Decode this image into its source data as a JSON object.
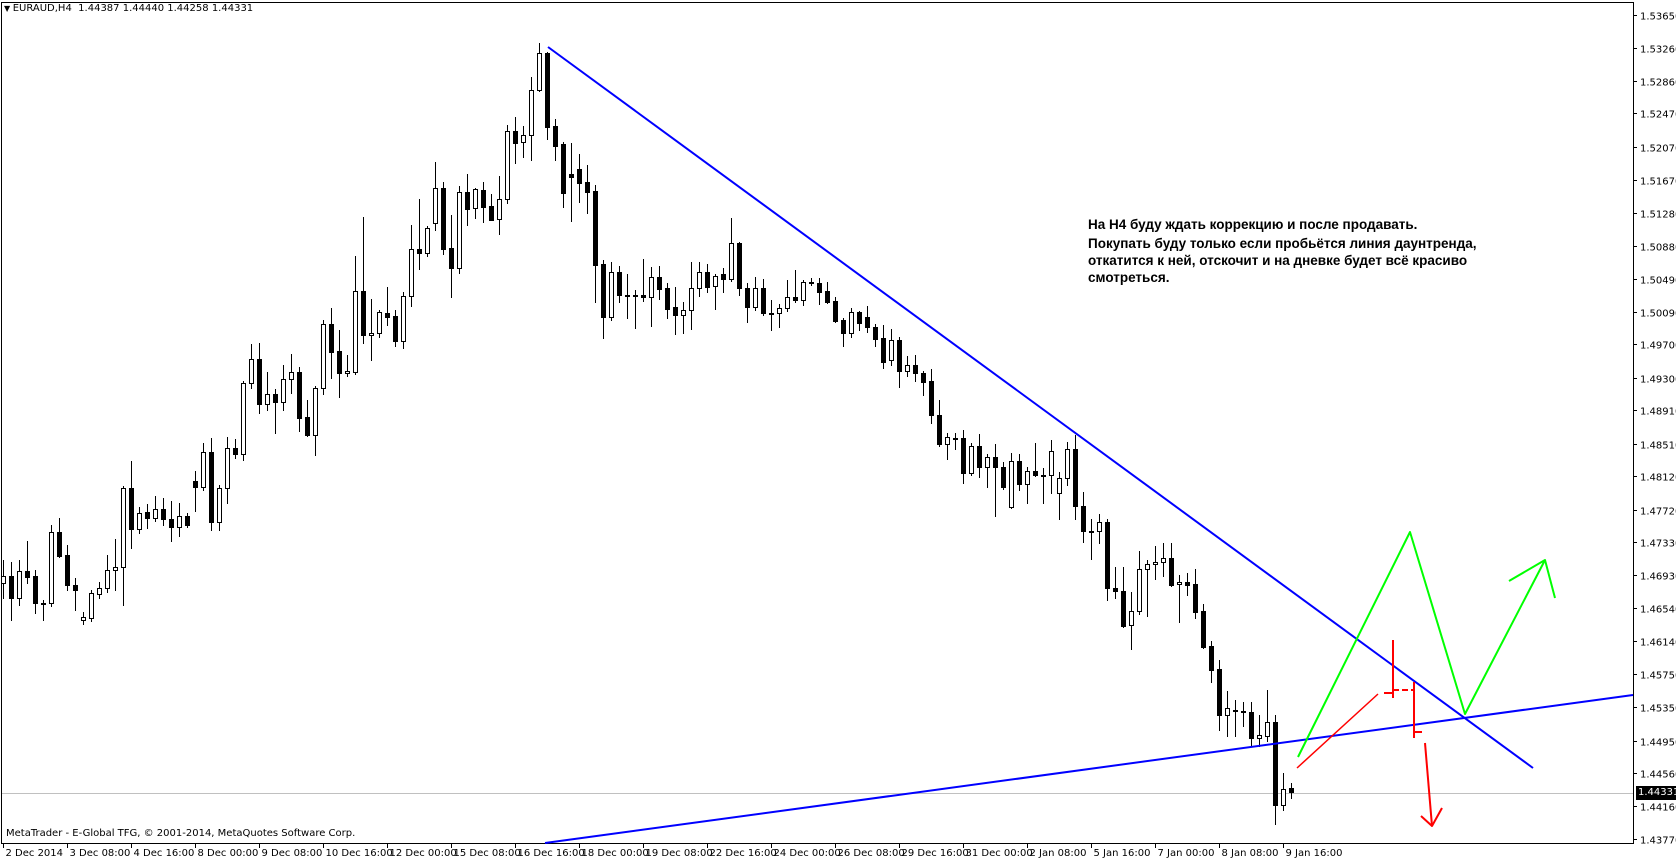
{
  "header": {
    "collapse_icon": "triangle-down-icon",
    "symbol": "EURAUD,H4",
    "open": "1.44387",
    "high": "1.44440",
    "low": "1.44258",
    "close": "1.44331"
  },
  "copyright": "MetaTrader - E-Global TFG, © 2001-2014, MetaQuotes Software Corp.",
  "annotation": {
    "line1": "На H4 буду ждать коррекцию и после продавать.",
    "line2": "Покупать буду только если пробьётся линия даунтренда,",
    "line3": "откатится к ней, отскочит и на дневке будет всё красиво",
    "line4": "смотреться."
  },
  "current_price": "1.44331",
  "colors": {
    "trendline": "#0000ff",
    "green_path": "#00ff00",
    "red_path": "#ff0000",
    "bull_body": "#ffffff",
    "bear_body": "#000000",
    "current_price_line": "#c0c0c0"
  },
  "chart_data": {
    "type": "candlestick",
    "symbol": "EURAUD",
    "timeframe": "H4",
    "ylim": [
      1.4377,
      1.5365
    ],
    "y_ticks": [
      "1.53650",
      "1.53260",
      "1.52860",
      "1.52470",
      "1.52070",
      "1.51670",
      "1.51280",
      "1.50880",
      "1.50490",
      "1.50090",
      "1.49700",
      "1.49300",
      "1.48910",
      "1.48510",
      "1.48120",
      "1.47720",
      "1.47330",
      "1.46930",
      "1.46540",
      "1.46140",
      "1.45750",
      "1.45350",
      "1.44950",
      "1.44560",
      "1.44160",
      "1.43770"
    ],
    "x_ticks": [
      "2 Dec 2014",
      "3 Dec 08:00",
      "4 Dec 16:00",
      "8 Dec 00:00",
      "9 Dec 08:00",
      "10 Dec 16:00",
      "12 Dec 00:00",
      "15 Dec 08:00",
      "16 Dec 16:00",
      "18 Dec 00:00",
      "19 Dec 08:00",
      "22 Dec 16:00",
      "24 Dec 00:00",
      "26 Dec 08:00",
      "29 Dec 16:00",
      "31 Dec 00:00",
      "2 Jan 08:00",
      "5 Jan 16:00",
      "7 Jan 00:00",
      "8 Jan 08:00",
      "9 Jan 16:00"
    ],
    "ohlc": [
      [
        1.46834,
        1.4711,
        1.46654,
        1.46918
      ],
      [
        1.46918,
        1.47086,
        1.4639,
        1.46654
      ],
      [
        1.46654,
        1.4711,
        1.4657,
        1.46978
      ],
      [
        1.46978,
        1.47338,
        1.46834,
        1.46906
      ],
      [
        1.46918,
        1.4699,
        1.46474,
        1.46594
      ],
      [
        1.46594,
        1.4663,
        1.4639,
        1.46582
      ],
      [
        1.46594,
        1.4753,
        1.46558,
        1.47446
      ],
      [
        1.47446,
        1.47614,
        1.47146,
        1.47158
      ],
      [
        1.4717,
        1.4729,
        1.4675,
        1.4681
      ],
      [
        1.4681,
        1.46894,
        1.4651,
        1.4675
      ],
      [
        1.4639,
        1.46486,
        1.46342,
        1.46426
      ],
      [
        1.46414,
        1.4675,
        1.46378,
        1.46714
      ],
      [
        1.46702,
        1.46846,
        1.46654,
        1.46774
      ],
      [
        1.46774,
        1.4717,
        1.46726,
        1.4699
      ],
      [
        1.4699,
        1.47362,
        1.4675,
        1.47026
      ],
      [
        1.47026,
        1.47998,
        1.4657,
        1.47974
      ],
      [
        1.47974,
        1.48298,
        1.47254,
        1.47482
      ],
      [
        1.47482,
        1.47746,
        1.47434,
        1.47674
      ],
      [
        1.47686,
        1.47782,
        1.47494,
        1.47614
      ],
      [
        1.47614,
        1.47878,
        1.47578,
        1.47722
      ],
      [
        1.47722,
        1.47854,
        1.4753,
        1.47602
      ],
      [
        1.47602,
        1.47818,
        1.47338,
        1.47506
      ],
      [
        1.47506,
        1.47794,
        1.47398,
        1.47638
      ],
      [
        1.47638,
        1.47674,
        1.47506,
        1.4753
      ],
      [
        1.48058,
        1.48178,
        1.47698,
        1.47986
      ],
      [
        1.47986,
        1.48514,
        1.4795,
        1.48406
      ],
      [
        1.48406,
        1.48574,
        1.4747,
        1.47566
      ],
      [
        1.47566,
        1.4801,
        1.4747,
        1.47974
      ],
      [
        1.47974,
        1.48586,
        1.47794,
        1.48454
      ],
      [
        1.48454,
        1.48562,
        1.48334,
        1.48382
      ],
      [
        1.48382,
        1.49258,
        1.4831,
        1.49234
      ],
      [
        1.49234,
        1.49702,
        1.49174,
        1.49522
      ],
      [
        1.49522,
        1.49714,
        1.48874,
        1.48982
      ],
      [
        1.48982,
        1.49366,
        1.4891,
        1.49102
      ],
      [
        1.49102,
        1.49162,
        1.48634,
        1.49006
      ],
      [
        1.49006,
        1.4945,
        1.4891,
        1.49282
      ],
      [
        1.49282,
        1.49582,
        1.49114,
        1.49366
      ],
      [
        1.49366,
        1.49426,
        1.48658,
        1.48814
      ],
      [
        1.48826,
        1.4903,
        1.48598,
        1.4861
      ],
      [
        1.4861,
        1.49198,
        1.4837,
        1.49174
      ],
      [
        1.49174,
        1.4999,
        1.49102,
        1.49942
      ],
      [
        1.49942,
        1.50134,
        1.49294,
        1.49606
      ],
      [
        1.49618,
        1.4987,
        1.49066,
        1.49354
      ],
      [
        1.49354,
        1.4957,
        1.49318,
        1.49378
      ],
      [
        1.49366,
        1.50758,
        1.49342,
        1.50338
      ],
      [
        1.50338,
        1.51226,
        1.49714,
        1.4981
      ],
      [
        1.4981,
        1.50242,
        1.4951,
        1.49834
      ],
      [
        1.49834,
        1.5011,
        1.49786,
        1.50086
      ],
      [
        1.50074,
        1.50386,
        1.4993,
        1.50026
      ],
      [
        1.50038,
        1.5011,
        1.49678,
        1.49738
      ],
      [
        1.49738,
        1.50326,
        1.49654,
        1.50278
      ],
      [
        1.50278,
        1.5113,
        1.50158,
        1.50842
      ],
      [
        1.50842,
        1.51442,
        1.50602,
        1.50794
      ],
      [
        1.50794,
        1.51118,
        1.50758,
        1.51094
      ],
      [
        1.51154,
        1.51886,
        1.5107,
        1.51574
      ],
      [
        1.51574,
        1.51646,
        1.50782,
        1.50842
      ],
      [
        1.50854,
        1.5125,
        1.50266,
        1.50614
      ],
      [
        1.50614,
        1.51598,
        1.50554,
        1.51526
      ],
      [
        1.51526,
        1.51742,
        1.5113,
        1.51322
      ],
      [
        1.51334,
        1.51574,
        1.51214,
        1.51562
      ],
      [
        1.5155,
        1.51646,
        1.51166,
        1.51346
      ],
      [
        1.51358,
        1.51502,
        1.5119,
        1.5119
      ],
      [
        1.51202,
        1.51718,
        1.51022,
        1.51442
      ],
      [
        1.51442,
        1.5233,
        1.51394,
        1.52258
      ],
      [
        1.52258,
        1.52426,
        1.51874,
        1.52114
      ],
      [
        1.52126,
        1.52318,
        1.51946,
        1.5221
      ],
      [
        1.5221,
        1.52906,
        1.5191,
        1.5275
      ],
      [
        1.5275,
        1.53314,
        1.52738,
        1.53194
      ],
      [
        1.53194,
        1.53206,
        1.52162,
        1.52306
      ],
      [
        1.52318,
        1.52402,
        1.5191,
        1.52078
      ],
      [
        1.52102,
        1.52126,
        1.51346,
        1.51514
      ],
      [
        1.51742,
        1.52114,
        1.51178,
        1.51706
      ],
      [
        1.51802,
        1.51982,
        1.51406,
        1.51634
      ],
      [
        1.51646,
        1.5185,
        1.51274,
        1.51526
      ],
      [
        1.51538,
        1.5161,
        1.50206,
        1.5065
      ],
      [
        1.50662,
        1.5071,
        1.49774,
        1.50026
      ],
      [
        1.50026,
        1.50686,
        1.4999,
        1.50566
      ],
      [
        1.50566,
        1.50638,
        1.50206,
        1.5029
      ],
      [
        1.5029,
        1.50542,
        1.50014,
        1.5029
      ],
      [
        1.5029,
        1.5035,
        1.49894,
        1.50278
      ],
      [
        1.5029,
        1.50722,
        1.50218,
        1.50266
      ],
      [
        1.50266,
        1.50626,
        1.49918,
        1.50506
      ],
      [
        1.50506,
        1.50638,
        1.50242,
        1.50362
      ],
      [
        1.50374,
        1.50434,
        1.50014,
        1.50122
      ],
      [
        1.50146,
        1.50386,
        1.49822,
        1.5005
      ],
      [
        1.5005,
        1.50206,
        1.49834,
        1.5011
      ],
      [
        1.5011,
        1.50686,
        1.49882,
        1.50374
      ],
      [
        1.50374,
        1.50686,
        1.50278,
        1.50566
      ],
      [
        1.50566,
        1.50662,
        1.50326,
        1.50386
      ],
      [
        1.50398,
        1.50542,
        1.50122,
        1.50518
      ],
      [
        1.50542,
        1.50614,
        1.50326,
        1.50482
      ],
      [
        1.50482,
        1.51214,
        1.50458,
        1.50914
      ],
      [
        1.50914,
        1.50926,
        1.5029,
        1.50374
      ],
      [
        1.50374,
        1.50434,
        1.49966,
        1.50146
      ],
      [
        1.50146,
        1.50506,
        1.5011,
        1.50374
      ],
      [
        1.50374,
        1.50482,
        1.5005,
        1.50074
      ],
      [
        1.50074,
        1.5023,
        1.4987,
        1.50074
      ],
      [
        1.50074,
        1.50182,
        1.49906,
        1.50134
      ],
      [
        1.50134,
        1.5047,
        1.50098,
        1.50266
      ],
      [
        1.50266,
        1.5059,
        1.50206,
        1.5023
      ],
      [
        1.5023,
        1.5047,
        1.5017,
        1.50446
      ],
      [
        1.50446,
        1.50494,
        1.5041,
        1.50446
      ],
      [
        1.50434,
        1.50494,
        1.50182,
        1.50326
      ],
      [
        1.50338,
        1.50446,
        1.50194,
        1.50206
      ],
      [
        1.50218,
        1.50266,
        1.49966,
        1.49978
      ],
      [
        1.4999,
        1.50014,
        1.49678,
        1.49834
      ],
      [
        1.49834,
        1.50134,
        1.49786,
        1.50086
      ],
      [
        1.50086,
        1.50098,
        1.4987,
        1.49954
      ],
      [
        1.50026,
        1.50158,
        1.49846,
        1.49906
      ],
      [
        1.49906,
        1.49942,
        1.49678,
        1.49762
      ],
      [
        1.49774,
        1.4993,
        1.49414,
        1.49486
      ],
      [
        1.4951,
        1.49882,
        1.4945,
        1.4975
      ],
      [
        1.4975,
        1.49786,
        1.49186,
        1.49378
      ],
      [
        1.49378,
        1.49558,
        1.49318,
        1.4945
      ],
      [
        1.4945,
        1.4957,
        1.49258,
        1.49354
      ],
      [
        1.49354,
        1.49378,
        1.4909,
        1.49246
      ],
      [
        1.49258,
        1.49402,
        1.48754,
        1.4885
      ],
      [
        1.4885,
        1.4903,
        1.48478,
        1.48502
      ],
      [
        1.48502,
        1.48634,
        1.48322,
        1.48586
      ],
      [
        1.48574,
        1.48634,
        1.48442,
        1.48574
      ],
      [
        1.48574,
        1.4867,
        1.48034,
        1.48154
      ],
      [
        1.48154,
        1.48514,
        1.4813,
        1.48478
      ],
      [
        1.48478,
        1.48622,
        1.48106,
        1.48226
      ],
      [
        1.48226,
        1.48382,
        1.47986,
        1.48346
      ],
      [
        1.48346,
        1.48502,
        1.47638,
        1.48226
      ],
      [
        1.48226,
        1.48286,
        1.47962,
        1.47986
      ],
      [
        1.47746,
        1.48394,
        1.47734,
        1.48298
      ],
      [
        1.48298,
        1.48382,
        1.4795,
        1.48022
      ],
      [
        1.48022,
        1.48226,
        1.47794,
        1.48178
      ],
      [
        1.48178,
        1.48514,
        1.48118,
        1.4813
      ],
      [
        1.4813,
        1.48214,
        1.47794,
        1.4813
      ],
      [
        1.4813,
        1.4855,
        1.47914,
        1.48418
      ],
      [
        1.47914,
        1.48166,
        1.47602,
        1.48094
      ],
      [
        1.48094,
        1.48526,
        1.4801,
        1.48442
      ],
      [
        1.48442,
        1.4861,
        1.47602,
        1.47758
      ],
      [
        1.47758,
        1.47926,
        1.47326,
        1.47458
      ],
      [
        1.47458,
        1.47602,
        1.47122,
        1.47458
      ],
      [
        1.47458,
        1.47662,
        1.47314,
        1.47566
      ],
      [
        1.47566,
        1.47602,
        1.4663,
        1.46774
      ],
      [
        1.46774,
        1.47026,
        1.46654,
        1.46738
      ],
      [
        1.46738,
        1.47026,
        1.46306,
        1.46318
      ],
      [
        1.4633,
        1.46726,
        1.46054,
        1.46498
      ],
      [
        1.46498,
        1.47218,
        1.46462,
        1.47002
      ],
      [
        1.47002,
        1.4711,
        1.46438,
        1.47062
      ],
      [
        1.47062,
        1.47278,
        1.46882,
        1.47086
      ],
      [
        1.47086,
        1.47314,
        1.46918,
        1.47134
      ],
      [
        1.47134,
        1.47314,
        1.46798,
        1.4681
      ],
      [
        1.46822,
        1.4693,
        1.46366,
        1.46846
      ],
      [
        1.46846,
        1.46954,
        1.4669,
        1.4681
      ],
      [
        1.46822,
        1.47002,
        1.46414,
        1.46486
      ],
      [
        1.46498,
        1.46582,
        1.46066,
        1.46078
      ],
      [
        1.4609,
        1.4615,
        1.45658,
        1.45802
      ],
      [
        1.45814,
        1.45922,
        1.45082,
        1.45262
      ],
      [
        1.45262,
        1.4555,
        1.4501,
        1.45346
      ],
      [
        1.45322,
        1.45442,
        1.4501,
        1.45322
      ],
      [
        1.4531,
        1.45418,
        1.4513,
        1.4531
      ],
      [
        1.45298,
        1.45418,
        1.4489,
        1.44986
      ],
      [
        1.44986,
        1.45262,
        1.4489,
        1.45022
      ],
      [
        1.4501,
        1.45562,
        1.4495,
        1.45178
      ],
      [
        1.45178,
        1.45262,
        1.43954,
        1.44182
      ],
      [
        1.44182,
        1.44566,
        1.44122,
        1.44374
      ],
      [
        1.44387,
        1.4444,
        1.44258,
        1.44331
      ]
    ]
  }
}
